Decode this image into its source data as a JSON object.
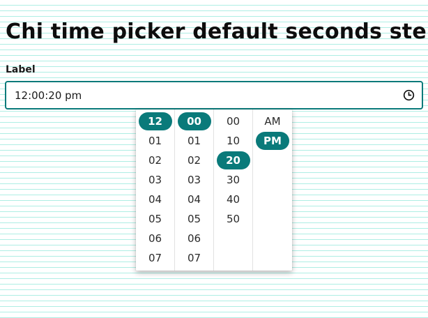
{
  "page": {
    "title": "Chi time picker default seconds step"
  },
  "field": {
    "label": "Label",
    "value": "12:00:20 pm",
    "icon": "clock-icon"
  },
  "picker": {
    "hours": [
      "12",
      "01",
      "02",
      "03",
      "04",
      "05",
      "06",
      "07"
    ],
    "minutes": [
      "00",
      "01",
      "02",
      "03",
      "04",
      "05",
      "06",
      "07"
    ],
    "seconds": [
      "00",
      "10",
      "20",
      "30",
      "40",
      "50"
    ],
    "periods": [
      "AM",
      "PM"
    ],
    "selected": {
      "hour": "12",
      "minute": "00",
      "second": "20",
      "period": "PM"
    },
    "accent_color": "#0a7a7a"
  }
}
